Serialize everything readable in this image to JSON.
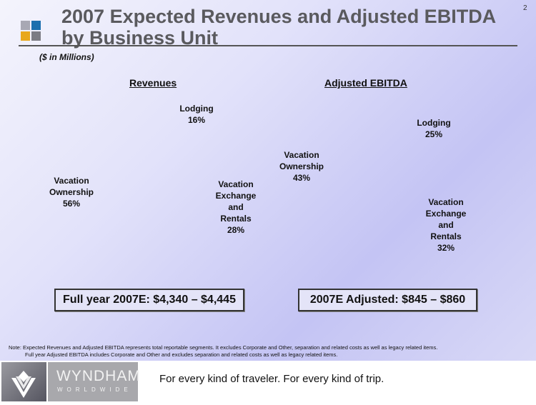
{
  "page_number": "2",
  "title_line1": "2007 Expected Revenues and Adjusted EBITDA",
  "title_line2": "by Business Unit",
  "units": "($ in Millions)",
  "logo_squares": [
    "#a8a8b4",
    "#1b6fae",
    "#e8a81c",
    "#7c7c84"
  ],
  "chart_data": [
    {
      "type": "pie",
      "title": "Revenues",
      "categories": [
        "Lodging",
        "Vacation Exchange and Rentals",
        "Vacation Ownership"
      ],
      "values": [
        16,
        28,
        56
      ],
      "labels": [
        "Lodging|16%",
        "Vacation|Exchange|and|Rentals|28%",
        "Vacation|Ownership|56%"
      ],
      "colors": [
        "#079b7a",
        "#0642b8",
        "#e08800"
      ],
      "unit": "%"
    },
    {
      "type": "pie",
      "title": "Adjusted EBITDA",
      "categories": [
        "Lodging",
        "Vacation Exchange and Rentals",
        "Vacation Ownership"
      ],
      "values": [
        25,
        32,
        43
      ],
      "labels": [
        "Lodging|25%",
        "Vacation|Exchange|and|Rentals|32%",
        "Vacation|Ownership|43%"
      ],
      "colors": [
        "#079b7a",
        "#0642b8",
        "#e08800"
      ],
      "unit": "%"
    }
  ],
  "boxes": {
    "revenues": "Full year 2007E: $4,340 – $4,445",
    "ebitda": "2007E Adjusted: $845 – $860"
  },
  "note_line1": "Note:  Expected Revenues and Adjusted EBITDA represents total reportable segments. It excludes Corporate and Other, separation and related costs as well as legacy related items.",
  "note_line2": "Full year Adjusted EBITDA includes Corporate and Other and excludes separation and related costs as well as legacy related items.",
  "footer": {
    "brand": "WYNDHAM",
    "brand_sub": "WORLDWIDE",
    "tagline": "For every kind of traveler. For every kind of trip."
  }
}
